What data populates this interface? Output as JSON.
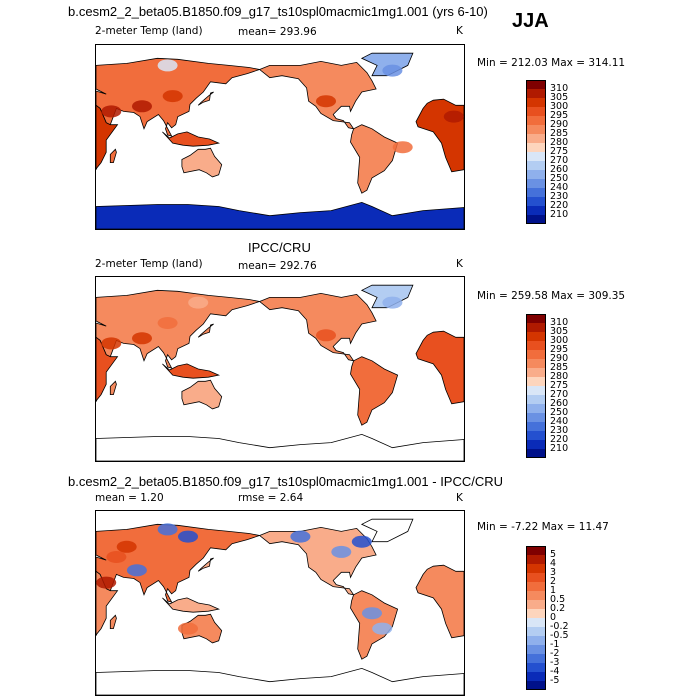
{
  "season": "JJA",
  "panels": [
    {
      "title": "b.cesm2_2_beta05.B1850.f09_g17_ts10spl0macmic1mg1.001 (yrs 6-10)",
      "left_label": "2-meter Temp (land)",
      "stat_label": "mean= 293.96",
      "stat2_label": "",
      "unit": "K",
      "minmax": "Min = 212.03 Max = 314.11",
      "scheme": "temp_model",
      "colorbar": {
        "labels": [
          "310",
          "305",
          "300",
          "295",
          "290",
          "285",
          "280",
          "275",
          "270",
          "260",
          "250",
          "240",
          "230",
          "220",
          "210"
        ],
        "colors": [
          "#7f0000",
          "#b01a00",
          "#d43500",
          "#e8501f",
          "#f16d3c",
          "#f58a5e",
          "#f9ac8a",
          "#fdd5bd",
          "#d9e6f7",
          "#b3cdf2",
          "#8fb0ec",
          "#6a91e3",
          "#4571da",
          "#2450cf",
          "#0a2bb8",
          "#00118a"
        ]
      }
    },
    {
      "title": "IPCC/CRU",
      "left_label": "2-meter Temp (land)",
      "stat_label": "mean= 292.76",
      "stat2_label": "",
      "unit": "K",
      "minmax": "Min = 259.58 Max = 309.35",
      "scheme": "temp_obs",
      "colorbar": {
        "labels": [
          "310",
          "305",
          "300",
          "295",
          "290",
          "285",
          "280",
          "275",
          "270",
          "260",
          "250",
          "240",
          "230",
          "220",
          "210"
        ],
        "colors": [
          "#7f0000",
          "#b01a00",
          "#d43500",
          "#e8501f",
          "#f16d3c",
          "#f58a5e",
          "#f9ac8a",
          "#fdd5bd",
          "#d9e6f7",
          "#b3cdf2",
          "#8fb0ec",
          "#6a91e3",
          "#4571da",
          "#2450cf",
          "#0a2bb8",
          "#00118a"
        ]
      }
    },
    {
      "title": "b.cesm2_2_beta05.B1850.f09_g17_ts10spl0macmic1mg1.001 - IPCC/CRU",
      "left_label": "mean =   1.20",
      "stat_label": "rmse =   2.64",
      "stat2_label": "",
      "unit": "K",
      "minmax": "Min =  -7.22 Max =  11.47",
      "scheme": "diff",
      "colorbar": {
        "labels": [
          "5",
          "4",
          "3",
          "2",
          "1",
          "0.5",
          "0.2",
          "0",
          "-0.2",
          "-0.5",
          "-1",
          "-2",
          "-3",
          "-4",
          "-5"
        ],
        "colors": [
          "#7f0000",
          "#b01a00",
          "#d43500",
          "#e8501f",
          "#f16d3c",
          "#f58a5e",
          "#f9ac8a",
          "#fdd5bd",
          "#d9e6f7",
          "#b3cdf2",
          "#8fb0ec",
          "#6a91e3",
          "#4571da",
          "#2450cf",
          "#0a2bb8",
          "#00118a"
        ]
      }
    }
  ],
  "chart_data": [
    {
      "type": "heatmap",
      "title": "b.cesm2_2_beta05.B1850.f09_g17_ts10spl0macmic1mg1.001 (yrs 6-10)",
      "variable": "2-meter Temp (land)",
      "units": "K",
      "mean": 293.96,
      "min": 212.03,
      "max": 314.11,
      "levels": [
        210,
        220,
        230,
        240,
        250,
        260,
        270,
        275,
        280,
        285,
        290,
        295,
        300,
        305,
        310
      ]
    },
    {
      "type": "heatmap",
      "title": "IPCC/CRU",
      "variable": "2-meter Temp (land)",
      "units": "K",
      "mean": 292.76,
      "min": 259.58,
      "max": 309.35,
      "levels": [
        210,
        220,
        230,
        240,
        250,
        260,
        270,
        275,
        280,
        285,
        290,
        295,
        300,
        305,
        310
      ]
    },
    {
      "type": "heatmap",
      "title": "b.cesm2_2_beta05.B1850.f09_g17_ts10spl0macmic1mg1.001 - IPCC/CRU",
      "units": "K",
      "mean": 1.2,
      "rmse": 2.64,
      "min": -7.22,
      "max": 11.47,
      "levels": [
        -5,
        -4,
        -3,
        -2,
        -1,
        -0.5,
        -0.2,
        0,
        0.2,
        0.5,
        1,
        2,
        3,
        4,
        5
      ]
    }
  ]
}
